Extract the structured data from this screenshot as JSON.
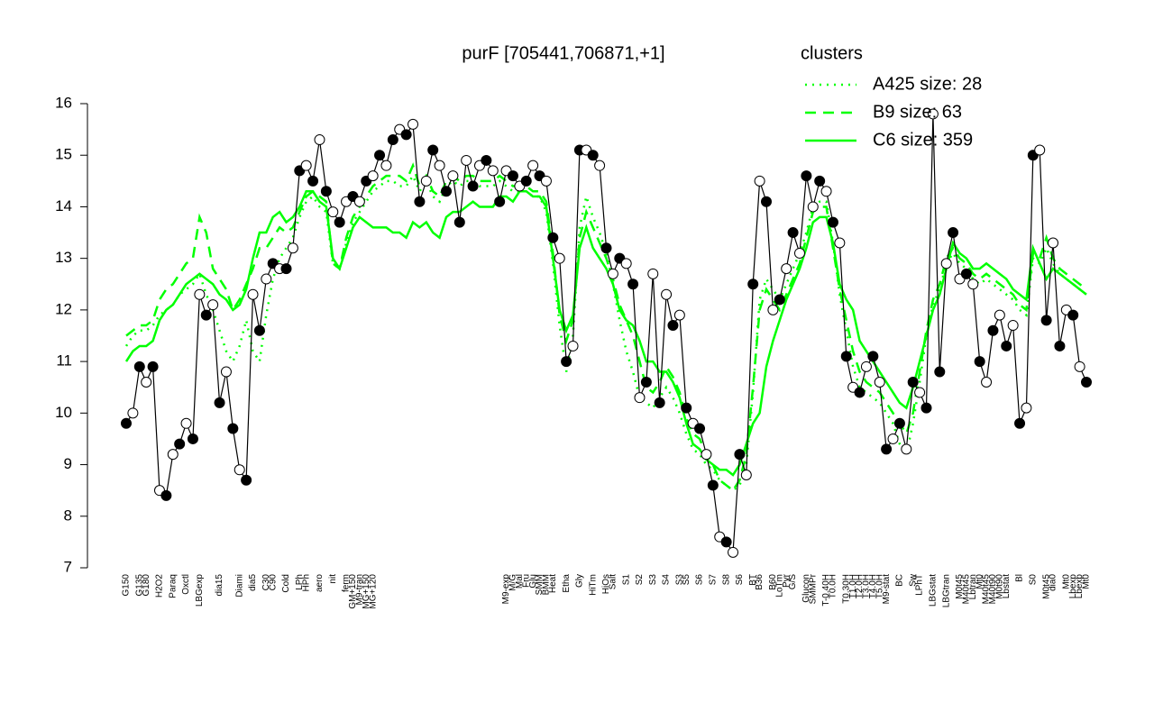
{
  "chart_data": {
    "type": "line",
    "title": "purF [705441,706871,+1]",
    "legend_title": "clusters",
    "legend_color": "#00ff00",
    "color": "#000000",
    "ylim": [
      7,
      16
    ],
    "yticks": [
      7,
      8,
      9,
      10,
      11,
      12,
      13,
      14,
      15,
      16
    ],
    "categories": [
      "G150",
      null,
      "G135",
      "G180",
      null,
      "H2O2",
      null,
      "Paraq",
      null,
      "Oxctl",
      null,
      "LBGexp",
      null,
      null,
      "dia15",
      null,
      null,
      "Diami",
      null,
      "dia5",
      null,
      "C30",
      "C90",
      null,
      "Cold",
      null,
      "LPh",
      "HPh",
      null,
      "aero",
      null,
      "nit",
      null,
      "ferm",
      "GM+150",
      "M9-tran",
      "MG+150",
      "MG+120",
      null,
      null,
      null,
      null,
      null,
      null,
      null,
      null,
      null,
      null,
      null,
      null,
      null,
      null,
      null,
      null,
      null,
      null,
      null,
      "M9-exp",
      "M/G",
      "Mal",
      "Fru",
      "Glu",
      "SMM",
      "BMM",
      "Heat",
      null,
      "Etha",
      null,
      "Gly",
      null,
      "HiTm",
      null,
      "HiOs",
      "Salt",
      null,
      "S1",
      null,
      "S2",
      null,
      "S3",
      null,
      "S4",
      null,
      "S3",
      "S5",
      null,
      "S6",
      null,
      "S7",
      null,
      "S8",
      null,
      "S6",
      null,
      "BT",
      "B36",
      null,
      "B60",
      "LoTm",
      "Pyr",
      "G/S",
      null,
      "Glucon",
      "SMMPr",
      null,
      "T-0.40H",
      "T0.0H",
      null,
      "T0.30H",
      "T1.0H",
      "T2.0H",
      "T3.0H",
      "T4.0H",
      "T5.0H",
      "M9-stat",
      null,
      "BC",
      null,
      "Sw",
      "LPhT",
      null,
      "LBGstat",
      null,
      "LBGtran",
      null,
      "M0t45",
      "M40t45",
      "Lbtran",
      "Mt0",
      "M40t45",
      "M40t90",
      "M0t90",
      "Lbstat",
      null,
      "Bl",
      null,
      "S0",
      null,
      "M0t45",
      "dia0",
      null,
      "Mt0",
      "Lbexp",
      "Lbexp",
      "Mt0"
    ],
    "values": [
      9.8,
      10.0,
      10.9,
      10.6,
      10.9,
      8.5,
      8.4,
      9.2,
      9.4,
      9.8,
      9.5,
      12.3,
      11.9,
      12.1,
      10.2,
      10.8,
      9.7,
      8.9,
      8.7,
      12.3,
      11.6,
      12.6,
      12.9,
      12.8,
      12.8,
      13.2,
      14.7,
      14.8,
      14.5,
      15.3,
      14.3,
      13.9,
      13.7,
      14.1,
      14.2,
      14.1,
      14.5,
      14.6,
      15.0,
      14.8,
      15.3,
      15.5,
      15.4,
      15.6,
      14.1,
      14.5,
      15.1,
      14.8,
      14.3,
      14.6,
      13.7,
      14.9,
      14.4,
      14.8,
      14.9,
      14.7,
      14.1,
      14.7,
      14.6,
      14.4,
      14.5,
      14.8,
      14.6,
      14.5,
      13.4,
      13.0,
      11.0,
      11.3,
      15.1,
      15.1,
      15.0,
      14.8,
      13.2,
      12.7,
      13.0,
      12.9,
      12.5,
      10.3,
      10.6,
      12.7,
      10.2,
      12.3,
      11.7,
      11.9,
      10.1,
      9.8,
      9.7,
      9.2,
      8.6,
      7.6,
      7.5,
      7.3,
      9.2,
      8.8,
      12.5,
      14.5,
      14.1,
      12.0,
      12.2,
      12.8,
      13.5,
      13.1,
      14.6,
      14.0,
      14.5,
      14.3,
      13.7,
      13.3,
      11.1,
      10.5,
      10.4,
      10.9,
      11.1,
      10.6,
      9.3,
      9.5,
      9.8,
      9.3,
      10.6,
      10.4,
      10.1,
      15.8,
      10.8,
      12.9,
      13.5,
      12.6,
      12.7,
      12.5,
      11.0,
      10.6,
      11.6,
      11.9,
      11.3,
      11.7,
      9.8,
      10.1,
      15.0,
      15.1,
      11.8,
      13.3,
      11.3,
      12.0,
      11.9,
      10.9,
      10.6
    ],
    "series": [
      {
        "name": "A425 size: 28",
        "color": "#00ff00",
        "linestyle": "dotted",
        "values": [
          11.3,
          11.5,
          11.6,
          11.6,
          11.7,
          11.9,
          12.0,
          12.1,
          12.3,
          12.4,
          12.5,
          12.7,
          12.3,
          12.0,
          11.6,
          11.2,
          11.0,
          11.3,
          11.8,
          11.2,
          11.0,
          11.9,
          12.6,
          13.0,
          13.2,
          13.4,
          13.8,
          14.1,
          14.2,
          14.0,
          13.9,
          12.9,
          12.8,
          13.3,
          13.7,
          13.9,
          14.1,
          14.3,
          14.4,
          14.5,
          14.5,
          14.4,
          14.4,
          14.6,
          14.3,
          14.5,
          14.2,
          14.1,
          14.4,
          14.5,
          14.4,
          14.5,
          14.5,
          14.4,
          14.4,
          14.4,
          14.5,
          14.4,
          14.3,
          14.3,
          14.3,
          14.2,
          14.2,
          13.9,
          12.9,
          11.7,
          10.8,
          11.5,
          13.6,
          14.2,
          13.8,
          13.5,
          13.1,
          12.5,
          11.8,
          11.2,
          10.8,
          10.3,
          10.2,
          10.1,
          10.3,
          10.5,
          10.3,
          10.0,
          9.6,
          9.3,
          9.2,
          9.0,
          8.9,
          8.7,
          8.6,
          8.5,
          8.6,
          9.0,
          10.4,
          12.2,
          12.6,
          12.4,
          12.2,
          12.5,
          12.8,
          13.1,
          13.5,
          14.0,
          14.1,
          14.1,
          13.3,
          12.3,
          11.6,
          10.9,
          10.5,
          10.4,
          10.3,
          10.2,
          10.0,
          9.8,
          9.4,
          9.2,
          9.8,
          10.6,
          11.5,
          12.1,
          12.4,
          12.9,
          13.1,
          12.9,
          12.8,
          12.6,
          12.5,
          12.6,
          12.5,
          12.4,
          12.3,
          12.2,
          12.0,
          11.9,
          13.0,
          12.9,
          13.2,
          12.9,
          12.7,
          12.6,
          12.5,
          12.4,
          12.3
        ]
      },
      {
        "name": "B9 size: 63",
        "color": "#00ff00",
        "linestyle": "dashed",
        "values": [
          11.5,
          11.6,
          11.7,
          11.7,
          11.8,
          12.2,
          12.4,
          12.5,
          12.7,
          12.9,
          13.0,
          13.8,
          13.5,
          12.8,
          12.6,
          12.4,
          12.0,
          12.2,
          12.5,
          12.8,
          13.2,
          13.2,
          13.4,
          13.6,
          13.5,
          13.6,
          13.9,
          14.2,
          14.3,
          14.2,
          14.1,
          12.9,
          12.8,
          13.4,
          13.8,
          14.0,
          14.2,
          14.4,
          14.5,
          14.6,
          14.6,
          14.6,
          14.5,
          14.8,
          14.4,
          14.6,
          14.3,
          14.2,
          14.5,
          14.6,
          14.5,
          14.6,
          14.6,
          14.5,
          14.5,
          14.5,
          14.6,
          14.5,
          14.4,
          14.4,
          14.4,
          14.3,
          14.3,
          14.1,
          13.1,
          11.9,
          11.4,
          11.8,
          13.4,
          13.9,
          13.6,
          13.3,
          13.0,
          12.6,
          12.1,
          11.8,
          11.5,
          11.0,
          10.5,
          10.4,
          10.6,
          10.9,
          10.7,
          10.4,
          9.9,
          9.6,
          9.5,
          9.2,
          9.0,
          8.7,
          8.6,
          8.5,
          8.7,
          9.2,
          10.5,
          12.0,
          12.4,
          12.2,
          12.0,
          12.3,
          12.6,
          12.9,
          13.4,
          13.9,
          14.0,
          14.0,
          13.2,
          12.4,
          11.8,
          11.2,
          10.8,
          10.6,
          10.5,
          10.4,
          10.2,
          10.0,
          9.8,
          9.6,
          10.0,
          10.8,
          11.6,
          12.2,
          12.5,
          13.0,
          13.2,
          13.0,
          12.9,
          12.7,
          12.6,
          12.7,
          12.6,
          12.5,
          12.4,
          12.3,
          12.1,
          12.0,
          13.1,
          13.0,
          13.4,
          13.0,
          12.8,
          12.7,
          12.6,
          12.5,
          12.4
        ]
      },
      {
        "name": "C6 size: 359",
        "color": "#00ff00",
        "linestyle": "solid",
        "values": [
          11.0,
          11.2,
          11.3,
          11.3,
          11.4,
          11.8,
          12.0,
          12.1,
          12.3,
          12.5,
          12.6,
          12.7,
          12.6,
          12.5,
          12.3,
          12.2,
          12.0,
          12.1,
          12.4,
          13.0,
          13.5,
          13.5,
          13.8,
          13.9,
          13.7,
          13.8,
          14.0,
          14.3,
          14.3,
          14.1,
          14.0,
          13.0,
          12.8,
          13.2,
          13.6,
          13.8,
          13.7,
          13.6,
          13.6,
          13.6,
          13.5,
          13.5,
          13.4,
          13.7,
          13.6,
          13.7,
          13.5,
          13.4,
          13.8,
          13.9,
          13.9,
          14.0,
          14.1,
          14.0,
          14.0,
          14.0,
          14.2,
          14.2,
          14.1,
          14.3,
          14.3,
          14.2,
          14.2,
          14.0,
          13.0,
          12.0,
          11.6,
          11.9,
          13.2,
          13.6,
          13.2,
          13.0,
          12.8,
          12.5,
          12.0,
          11.8,
          11.7,
          11.4,
          11.0,
          11.0,
          10.8,
          10.8,
          10.6,
          10.3,
          9.8,
          9.4,
          9.3,
          9.1,
          9.0,
          8.9,
          8.9,
          8.8,
          9.0,
          9.4,
          9.8,
          10.0,
          10.9,
          11.4,
          11.8,
          12.2,
          12.5,
          12.8,
          13.2,
          13.7,
          13.8,
          13.8,
          13.3,
          12.5,
          12.2,
          12.0,
          11.4,
          11.2,
          11.0,
          10.8,
          10.6,
          10.4,
          10.2,
          10.1,
          10.5,
          11.0,
          11.5,
          12.0,
          12.3,
          12.8,
          13.3,
          13.1,
          13.0,
          12.8,
          12.8,
          12.9,
          12.8,
          12.7,
          12.6,
          12.4,
          12.3,
          12.2,
          13.2,
          12.9,
          12.6,
          12.8,
          12.7,
          12.6,
          12.5,
          12.4,
          12.3
        ]
      }
    ]
  }
}
